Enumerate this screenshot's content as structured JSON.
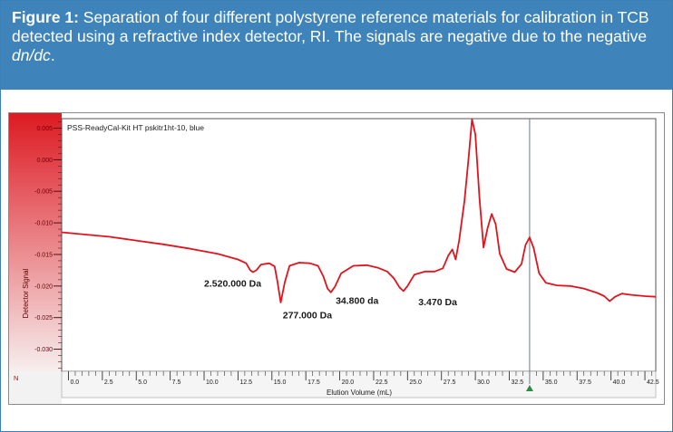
{
  "caption": {
    "label": "Figure 1:",
    "text_before": " Separation of four different polystyrene reference materials for calibration in TCB detected using a refractive index detector, RI. The signals are negative due to the negative ",
    "emphasis": "dn/dc",
    "text_after": "."
  },
  "colors": {
    "caption_bg": "#3e83b9",
    "trace": "#e1141e",
    "axis_gradient_top": "#dd1a22",
    "axis_gradient_bottom": "#f7eeee"
  },
  "chart_data": {
    "type": "line",
    "title": "PSS-ReadyCal-Kit HT pskitr1ht-10, blue",
    "xlabel": "Elution Volume (mL)",
    "ylabel": "Detector Signal",
    "xlim": [
      -0.5,
      43.3
    ],
    "ylim": [
      -0.0335,
      0.0065
    ],
    "x_ticks": [
      0.0,
      2.5,
      5.0,
      7.5,
      10.0,
      12.5,
      15.0,
      17.5,
      20.0,
      22.5,
      25.0,
      27.5,
      30.0,
      32.5,
      35.0,
      37.5,
      40.0,
      42.5
    ],
    "x_tick_labels": [
      "0.0",
      "2.5",
      "5.0",
      "7.5",
      "10.0",
      "12.5",
      "15.0",
      "17.5",
      "20.0",
      "22.5",
      "25.0",
      "27.5",
      "30.0",
      "32.5",
      "35.0",
      "37.5",
      "40.0",
      "42.5"
    ],
    "y_ticks": [
      0.005,
      0.0,
      -0.005,
      -0.01,
      -0.015,
      -0.02,
      -0.025,
      -0.03
    ],
    "y_tick_labels": [
      "0.005",
      "0.000",
      "-0.005",
      "-0.010",
      "-0.015",
      "-0.020",
      "-0.025",
      "-0.030"
    ],
    "y_unit_label": "N",
    "cursor_x": 34.0,
    "series": [
      {
        "name": "pskitr1ht-10",
        "x": [
          -0.5,
          1.0,
          3.0,
          5.0,
          7.0,
          9.0,
          11.0,
          12.5,
          13.1,
          13.4,
          13.6,
          13.85,
          14.2,
          14.8,
          15.2,
          15.4,
          15.65,
          15.95,
          16.3,
          17.0,
          17.8,
          18.4,
          18.8,
          19.1,
          19.35,
          19.65,
          20.1,
          21.0,
          22.0,
          22.8,
          23.5,
          24.0,
          24.4,
          24.7,
          25.0,
          25.5,
          26.3,
          27.0,
          27.6,
          28.0,
          28.3,
          28.55,
          28.8,
          29.2,
          29.5,
          29.75,
          30.0,
          30.3,
          30.6,
          30.9,
          31.2,
          31.5,
          31.8,
          32.3,
          32.9,
          33.4,
          33.7,
          34.0,
          34.3,
          34.7,
          35.2,
          36.0,
          37.0,
          38.0,
          39.0,
          39.5,
          39.9,
          40.3,
          40.8,
          41.5,
          42.5,
          43.3
        ],
        "y": [
          -0.0115,
          -0.0118,
          -0.0122,
          -0.0128,
          -0.0134,
          -0.0141,
          -0.0149,
          -0.0158,
          -0.0164,
          -0.0175,
          -0.0178,
          -0.0175,
          -0.0166,
          -0.0164,
          -0.0169,
          -0.0192,
          -0.0226,
          -0.0194,
          -0.0168,
          -0.0163,
          -0.0164,
          -0.0168,
          -0.0185,
          -0.0204,
          -0.021,
          -0.0201,
          -0.018,
          -0.0168,
          -0.0167,
          -0.0171,
          -0.0177,
          -0.0188,
          -0.0202,
          -0.0208,
          -0.02,
          -0.0182,
          -0.0177,
          -0.0177,
          -0.0172,
          -0.0152,
          -0.0142,
          -0.0158,
          -0.0128,
          -0.0065,
          0.0002,
          0.0064,
          0.004,
          -0.006,
          -0.0139,
          -0.0108,
          -0.0086,
          -0.0102,
          -0.0149,
          -0.0173,
          -0.0178,
          -0.0165,
          -0.0135,
          -0.0123,
          -0.014,
          -0.018,
          -0.0195,
          -0.0199,
          -0.02,
          -0.0204,
          -0.0211,
          -0.0216,
          -0.0224,
          -0.0217,
          -0.0212,
          -0.0214,
          -0.0216,
          -0.0217
        ]
      }
    ],
    "annotations": [
      {
        "text": "2.520.000 Da",
        "x": 10.0,
        "y": -0.0201
      },
      {
        "text": "277.000 Da",
        "x": 15.8,
        "y": -0.0251
      },
      {
        "text": "34.800 da",
        "x": 19.7,
        "y": -0.0228
      },
      {
        "text": "3.470 Da",
        "x": 25.8,
        "y": -0.023
      }
    ]
  }
}
